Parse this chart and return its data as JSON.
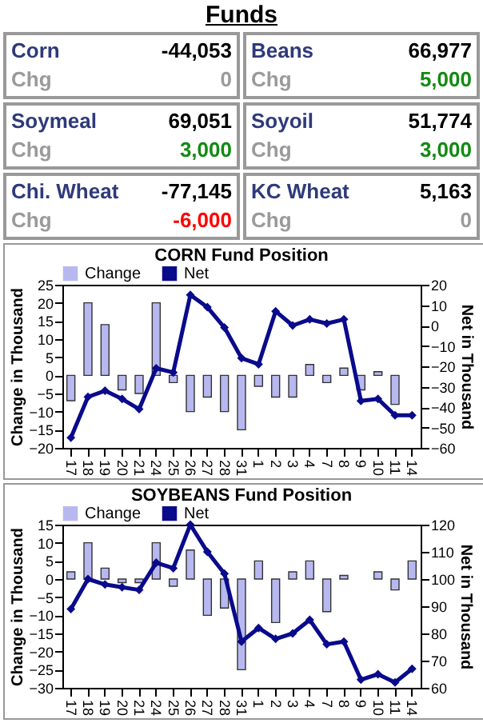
{
  "chart_data": [
    {
      "type": "other",
      "title": "Funds",
      "annotations": [
        "Corn",
        "-44,053",
        "Chg",
        "0",
        "Beans",
        "66,977",
        "Chg",
        "5,000",
        "Soymeal",
        "69,051",
        "Chg",
        "3,000",
        "Soyoil",
        "51,774",
        "Chg",
        "3,000",
        "Chi. Wheat",
        "-77,145",
        "Chg",
        "-6,000",
        "KC Wheat",
        "5,163",
        "Chg",
        "0"
      ],
      "colors": [
        "#2e3a7a",
        "#000000",
        "#9a9a9a",
        "#9a9a9a",
        "#2e3a7a",
        "#000000",
        "#9a9a9a",
        "#128a12",
        "#2e3a7a",
        "#000000",
        "#9a9a9a",
        "#128a12",
        "#2e3a7a",
        "#000000",
        "#9a9a9a",
        "#128a12",
        "#2e3a7a",
        "#000000",
        "#9a9a9a",
        "#ff0000",
        "#2e3a7a",
        "#000000",
        "#9a9a9a",
        "#9a9a9a"
      ]
    },
    {
      "type": "bar",
      "title": "CORN Fund Position",
      "ylabel": "Change in Thousand",
      "y2label": "Net in Thousand",
      "legend": "top",
      "marker": "diamond",
      "categories": [
        "17",
        "18",
        "19",
        "20",
        "21",
        "24",
        "25",
        "26",
        "27",
        "28",
        "31",
        "1",
        "2",
        "3",
        "4",
        "7",
        "8",
        "9",
        "10",
        "11",
        "14"
      ],
      "ylim": [
        -20,
        25
      ],
      "yticks": [
        -20,
        -15,
        -10,
        -5,
        0,
        5,
        10,
        15,
        20,
        25
      ],
      "y2lim": [
        -60,
        20
      ],
      "y2ticks": [
        -60,
        -50,
        -40,
        -30,
        -20,
        -10,
        0,
        10,
        20
      ],
      "series": [
        {
          "name": "Change",
          "type": "bar",
          "color": "#b8b8f0",
          "values": [
            -7,
            20,
            14,
            -4,
            -5,
            20,
            -2,
            -10,
            -6,
            -10,
            -15,
            -3,
            -6,
            -6,
            3,
            -2,
            2,
            -4,
            1,
            -8,
            0
          ]
        },
        {
          "name": "Net",
          "type": "line",
          "axis": "y2",
          "color": "#0a0a8c",
          "values": [
            -55,
            -35,
            -32,
            -36,
            -41,
            -21,
            -23,
            15,
            9,
            -1,
            -16,
            -19,
            7,
            0,
            3,
            1,
            3,
            -37,
            -36,
            -44,
            -44
          ]
        }
      ]
    },
    {
      "type": "bar",
      "title": "SOYBEANS  Fund Position",
      "ylabel": "Change in Thousand",
      "y2label": "Net in Thousand",
      "legend": "top",
      "marker": "diamond",
      "categories": [
        "17",
        "18",
        "19",
        "20",
        "21",
        "24",
        "25",
        "26",
        "27",
        "28",
        "31",
        "1",
        "2",
        "3",
        "4",
        "7",
        "8",
        "9",
        "10",
        "11",
        "14"
      ],
      "ylim": [
        -30,
        15
      ],
      "yticks": [
        -30,
        -25,
        -20,
        -15,
        -10,
        -5,
        0,
        5,
        10,
        15
      ],
      "y2lim": [
        60,
        120
      ],
      "y2ticks": [
        60,
        70,
        80,
        90,
        100,
        110,
        120
      ],
      "series": [
        {
          "name": "Change",
          "type": "bar",
          "color": "#b8b8f0",
          "values": [
            2,
            10,
            3,
            -1,
            -1,
            10,
            -2,
            8,
            -10,
            -8,
            -25,
            5,
            -12,
            2,
            5,
            -9,
            1,
            0,
            2,
            -3,
            5
          ]
        },
        {
          "name": "Net",
          "type": "line",
          "axis": "y2",
          "color": "#0a0a8c",
          "values": [
            89,
            100,
            98,
            97,
            96,
            106,
            104,
            120,
            110,
            102,
            77,
            82,
            78,
            80,
            85,
            76,
            77,
            63,
            65,
            62,
            67
          ]
        }
      ]
    }
  ]
}
